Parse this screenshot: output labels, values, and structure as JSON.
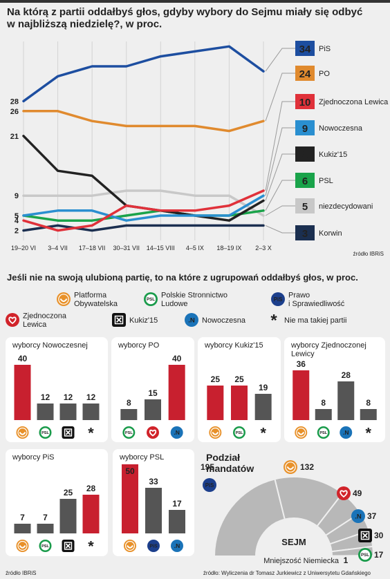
{
  "chart_data": [
    {
      "type": "line",
      "title": "Na którą z partii oddałbyś głos, gdyby wybory do Sejmu miały się odbyć\nw najbliższą niedzielę?, w proc.",
      "categories": [
        "19–20 VI",
        "3–4 VII",
        "17–18 VII",
        "30–31 VII",
        "14–15 VIII",
        "4–5 IX",
        "18–19 IX",
        "2–3 X"
      ],
      "series": [
        {
          "name": "PiS",
          "color": "#1d4ea0",
          "values": [
            28,
            33,
            35,
            35,
            37,
            38,
            39,
            34
          ]
        },
        {
          "name": "PO",
          "color": "#e08a2e",
          "values": [
            26,
            26,
            24,
            23,
            23,
            23,
            22,
            24
          ]
        },
        {
          "name": "Zjednoczona Lewica",
          "color": "#e0313a",
          "values": [
            4,
            2,
            3,
            7,
            6,
            6,
            7,
            10
          ]
        },
        {
          "name": "Nowoczesna",
          "color": "#2a8fd0",
          "values": [
            5,
            6,
            6,
            4,
            5,
            5,
            5,
            9
          ]
        },
        {
          "name": "Kukiz'15",
          "color": "#222222",
          "values": [
            21,
            14,
            13,
            7,
            6,
            5,
            4,
            8
          ]
        },
        {
          "name": "PSL",
          "color": "#1aa34a",
          "values": [
            5,
            4,
            4,
            5,
            6,
            5,
            5,
            6
          ]
        },
        {
          "name": "niezdecydowani",
          "color": "#c8c8c8",
          "values": [
            9,
            9,
            9,
            10,
            10,
            9,
            9,
            5
          ]
        },
        {
          "name": "Korwin",
          "color": "#1b2f50",
          "values": [
            2,
            3,
            2,
            3,
            3,
            3,
            3,
            3
          ]
        }
      ],
      "ylim": [
        0,
        40
      ],
      "grid": true,
      "source": "źródło IBRiS"
    },
    {
      "type": "bar",
      "title": "wyborcy Nowoczesnej",
      "categories": [
        "Platforma\nObywatelska",
        "Polskie Stronnictwo\nLudowe",
        "Kukiz'15",
        "Nie ma takiej partii"
      ],
      "values": [
        40,
        12,
        12,
        12
      ],
      "colors": [
        "#c8202f",
        "#555555",
        "#555555",
        "#555555"
      ],
      "ylim": [
        0,
        50
      ]
    },
    {
      "type": "bar",
      "title": "wyborcy PO",
      "categories": [
        "Polskie Stronnictwo\nLudowe",
        "Zjednoczona\nLewica",
        "Nowoczesna"
      ],
      "values": [
        8,
        15,
        40
      ],
      "colors": [
        "#555555",
        "#555555",
        "#c8202f"
      ],
      "ylim": [
        0,
        50
      ]
    },
    {
      "type": "bar",
      "title": "wyborcy Kukiz'15",
      "categories": [
        "Platforma\nObywatelska",
        "Polskie Stronnictwo\nLudowe",
        "Nie ma takiej partii"
      ],
      "values": [
        25,
        25,
        19
      ],
      "colors": [
        "#c8202f",
        "#c8202f",
        "#555555"
      ],
      "ylim": [
        0,
        50
      ]
    },
    {
      "type": "bar",
      "title": "wyborcy Zjednoczonej\nLewicy",
      "categories": [
        "Platforma\nObywatelska",
        "Polskie Stronnictwo\nLudowe",
        "Nowoczesna",
        "Nie ma takiej partii"
      ],
      "values": [
        36,
        8,
        28,
        8
      ],
      "colors": [
        "#c8202f",
        "#555555",
        "#555555",
        "#555555"
      ],
      "ylim": [
        0,
        50
      ]
    },
    {
      "type": "bar",
      "title": "wyborcy PiS",
      "categories": [
        "Platforma\nObywatelska",
        "Polskie Stronnictwo\nLudowe",
        "Kukiz'15",
        "Nie ma takiej partii"
      ],
      "values": [
        7,
        7,
        25,
        28
      ],
      "colors": [
        "#555555",
        "#555555",
        "#555555",
        "#c8202f"
      ],
      "ylim": [
        0,
        50
      ]
    },
    {
      "type": "bar",
      "title": "wyborcy PSL",
      "categories": [
        "Platforma\nObywatelska",
        "Prawo\ni Sprawiedliwość",
        "Nowoczesna"
      ],
      "values": [
        50,
        33,
        17
      ],
      "colors": [
        "#c8202f",
        "#555555",
        "#555555"
      ],
      "ylim": [
        0,
        50
      ]
    },
    {
      "type": "parliament",
      "title": "Podział\nmandatów",
      "center_label": "SEJM",
      "categories": [
        "Prawo\ni Sprawiedliwość",
        "Platforma\nObywatelska",
        "Zjednoczona\nLewica",
        "Nowoczesna",
        "Kukiz'15",
        "Polskie Stronnictwo\nLudowe",
        "Mniejszość Niemiecka"
      ],
      "values": [
        195,
        132,
        49,
        37,
        30,
        17,
        1
      ],
      "color": "#b8b8b8"
    }
  ],
  "section": {
    "title": "Jeśli nie na swoją ulubioną partię, to na które z ugrupowań oddałbyś głos, w proc.",
    "parties": [
      {
        "name": "Platforma\nObywatelska",
        "color": "#e8912a"
      },
      {
        "name": "Polskie Stronnictwo\nLudowe",
        "icon": "PSL",
        "color": "#1a9b4b"
      },
      {
        "name": "Prawo\ni Sprawiedliwość",
        "icon": "PiS",
        "color": "#1c3f8c"
      },
      {
        "name": "Zjednoczona\nLewica",
        "color": "#d1232a"
      },
      {
        "name": "Kukiz'15",
        "color": "#111111"
      },
      {
        "name": "Nowoczesna",
        "icon": ".N",
        "color": "#1a73b8"
      },
      {
        "name": "Nie ma takiej partii",
        "icon": "*",
        "color": "#111111"
      }
    ]
  },
  "footer": {
    "left": "źródło IBRiS",
    "right": "źródło: Wyliczenia dr Tomasz Jurkiewicz z Uniwersytetu Gdańskiego"
  }
}
